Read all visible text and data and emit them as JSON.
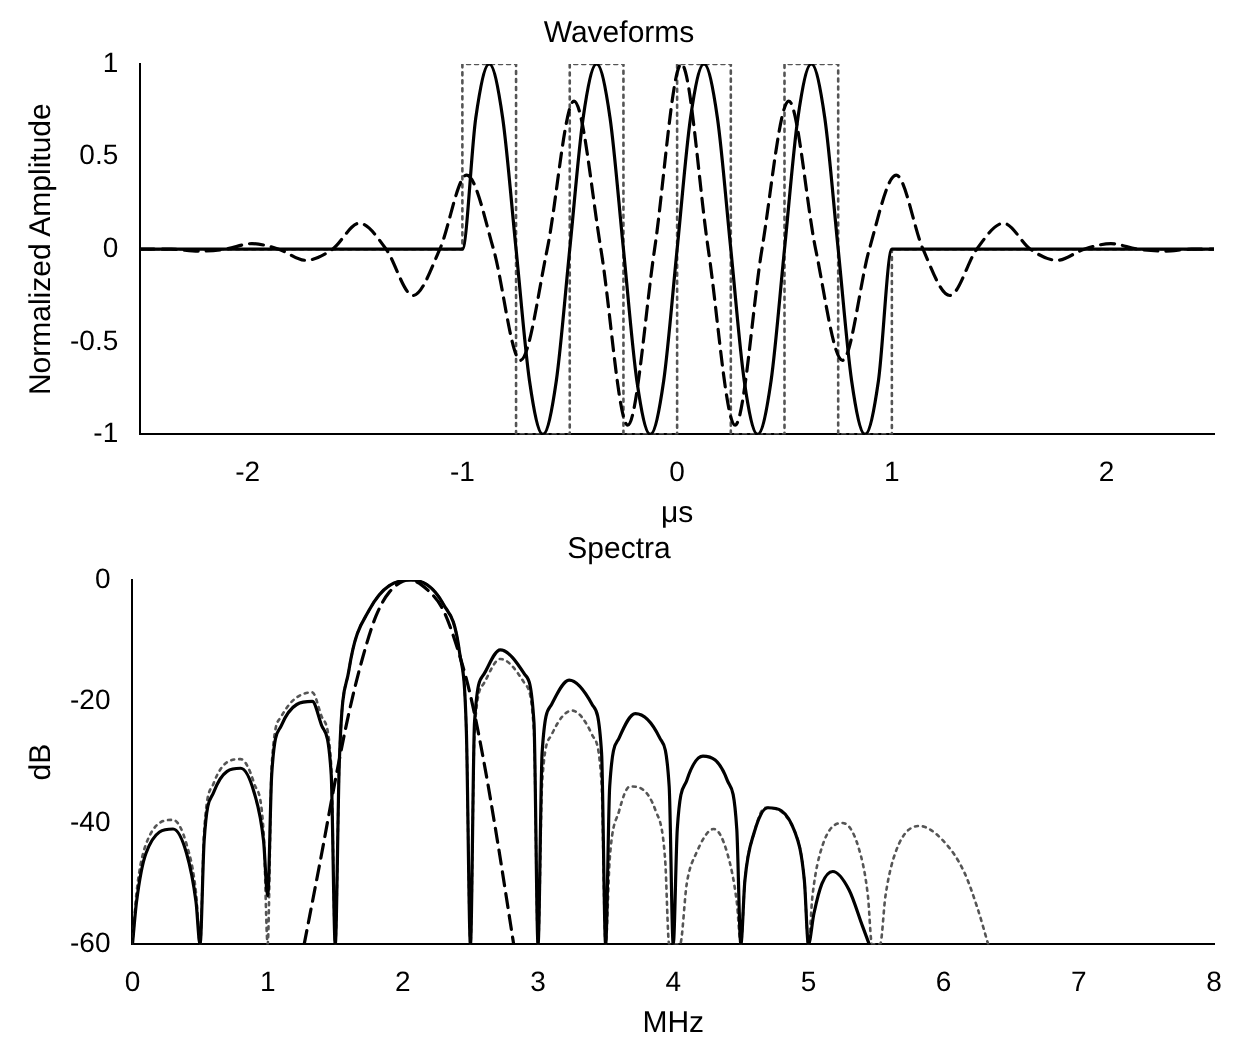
{
  "chart_data": [
    {
      "type": "line",
      "title": "Waveforms",
      "xlabel": "μs",
      "ylabel": "Normalized Amplitude",
      "xlim": [
        -2.5,
        2.5
      ],
      "xticks": [
        -2,
        -1,
        0,
        1,
        2
      ],
      "ylim": [
        -1,
        1
      ],
      "yticks": [
        -1,
        -0.5,
        0,
        0.5,
        1
      ],
      "grid": false,
      "legend": false,
      "marker": "none",
      "series": [
        {
          "type": "line",
          "color": "#000000",
          "line_style": "solid",
          "x": [
            -2.5,
            -1,
            -0.9375,
            -0.875,
            -0.8125,
            -0.75,
            -0.6875,
            -0.625,
            -0.5625,
            -0.5,
            -0.4375,
            -0.375,
            -0.3125,
            -0.25,
            -0.1875,
            -0.125,
            -0.0625,
            0,
            0.0625,
            0.125,
            0.1875,
            0.25,
            0.3125,
            0.375,
            0.4375,
            0.5,
            0.5625,
            0.625,
            0.6875,
            0.75,
            0.8125,
            0.875,
            0.9375,
            1,
            2.5
          ],
          "values": [
            0,
            0,
            0.71,
            1,
            0.71,
            0,
            -0.71,
            -1,
            -0.71,
            0,
            0.71,
            1,
            0.71,
            0,
            -0.71,
            -1,
            -0.71,
            0,
            0.71,
            1,
            0.71,
            0,
            -0.71,
            -1,
            -0.71,
            0,
            0.71,
            1,
            0.71,
            0,
            -0.71,
            -1,
            -0.71,
            0,
            0
          ]
        },
        {
          "type": "line",
          "color": "#000000",
          "line_style": "dashed",
          "x": [
            -2.5,
            -2.48,
            -2.355,
            -2.23,
            -2.105,
            -1.98,
            -1.855,
            -1.73,
            -1.605,
            -1.48,
            -1.355,
            -1.23,
            -1.105,
            -0.98,
            -0.855,
            -0.73,
            -0.605,
            -0.48,
            -0.355,
            -0.23,
            -0.105,
            0.02,
            0.145,
            0.27,
            0.395,
            0.52,
            0.645,
            0.77,
            0.895,
            1.02,
            1.145,
            1.27,
            1.395,
            1.52,
            1.645,
            1.77,
            1.895,
            2.02,
            2.145,
            2.27,
            2.395,
            2.5
          ],
          "values": [
            0,
            0,
            0,
            -0.01,
            0,
            0.03,
            0,
            -0.06,
            0,
            0.14,
            0,
            -0.25,
            0,
            0.4,
            0,
            -0.6,
            0,
            0.8,
            0,
            -0.95,
            0,
            1,
            0,
            -0.95,
            0,
            0.8,
            0,
            -0.6,
            0,
            0.4,
            0,
            -0.25,
            0,
            0.14,
            0,
            -0.06,
            0,
            0.03,
            0,
            -0.01,
            0,
            0
          ]
        },
        {
          "type": "step",
          "color": "#555555",
          "line_style": "dotted",
          "x": [
            -2.5,
            -1,
            -0.75,
            -0.5,
            -0.25,
            0,
            0.25,
            0.5,
            0.75,
            1,
            2.5
          ],
          "values": [
            0,
            1,
            -1,
            1,
            -1,
            1,
            -1,
            1,
            -1,
            0,
            0
          ]
        }
      ]
    },
    {
      "type": "line",
      "title": "Spectra",
      "xlabel": "MHz",
      "ylabel": "dB",
      "xlim": [
        0,
        8
      ],
      "xticks": [
        0,
        1,
        2,
        3,
        4,
        5,
        6,
        7,
        8
      ],
      "ylim": [
        -60,
        0
      ],
      "yticks": [
        -60,
        -40,
        -20,
        0
      ],
      "grid": false,
      "legend": false,
      "marker": "none",
      "series": [
        {
          "type": "line",
          "color": "#000000",
          "line_style": "solid",
          "x": [
            0,
            0.03,
            0.1,
            0.3,
            0.4,
            0.47,
            0.5,
            0.53,
            0.6,
            0.8,
            0.9,
            0.97,
            1,
            1.03,
            1.1,
            1.33,
            1.4,
            1.47,
            1.5,
            1.53,
            1.6,
            1.75,
            2.05,
            2.3,
            2.42,
            2.47,
            2.5,
            2.53,
            2.6,
            2.72,
            2.9,
            2.97,
            3,
            3.03,
            3.1,
            3.23,
            3.4,
            3.47,
            3.5,
            3.53,
            3.6,
            3.72,
            3.9,
            3.97,
            4,
            4.03,
            4.1,
            4.22,
            4.4,
            4.47,
            4.5,
            4.53,
            4.6,
            4.7,
            4.9,
            4.97,
            5,
            5.04,
            5.1,
            5.18,
            5.3,
            5.4,
            5.45
          ],
          "values": [
            -60,
            -53,
            -45,
            -41,
            -45,
            -53,
            -60,
            -43,
            -35,
            -31,
            -35,
            -43,
            -52,
            -32,
            -24,
            -20,
            -24,
            -32,
            -60,
            -30,
            -15,
            -5,
            0,
            -4,
            -12,
            -25,
            -60,
            -23.5,
            -15.5,
            -11.5,
            -15.5,
            -23.5,
            -60,
            -28.5,
            -20.5,
            -16.5,
            -20.5,
            -28.5,
            -60,
            -34,
            -26,
            -22,
            -26,
            -34,
            -60,
            -41,
            -33,
            -29,
            -33,
            -41,
            -60,
            -49.5,
            -41.5,
            -37.5,
            -41.5,
            -49.5,
            -60,
            -55,
            -50,
            -48,
            -51,
            -57,
            -60
          ]
        },
        {
          "type": "line",
          "color": "#000000",
          "line_style": "dashed",
          "x": [
            1.27,
            1.4,
            1.5,
            1.6,
            1.7,
            1.8,
            1.9,
            2.05,
            2.2,
            2.3,
            2.4,
            2.5,
            2.6,
            2.7,
            2.82
          ],
          "values": [
            -60,
            -45,
            -33,
            -22,
            -13,
            -6,
            -2,
            0,
            -2,
            -5,
            -11,
            -19,
            -30,
            -43,
            -60
          ]
        },
        {
          "type": "line",
          "color": "#555555",
          "line_style": "dotted",
          "x": [
            0,
            0.03,
            0.1,
            0.3,
            0.4,
            0.47,
            0.5,
            0.53,
            0.6,
            0.8,
            0.9,
            0.97,
            1,
            1.03,
            1.1,
            1.33,
            1.4,
            1.47,
            1.5,
            1.53,
            1.6,
            1.75,
            2.05,
            2.3,
            2.42,
            2.47,
            2.5,
            2.53,
            2.6,
            2.72,
            2.9,
            2.97,
            3,
            3.03,
            3.1,
            3.25,
            3.4,
            3.47,
            3.5,
            3.53,
            3.6,
            3.68,
            3.87,
            3.94,
            3.97,
            4.05,
            4.1,
            4.17,
            4.3,
            4.4,
            4.47,
            4.5,
            4.53,
            4.6,
            4.68,
            4.9,
            4.97,
            5,
            5.03,
            5.1,
            5.25,
            5.37,
            5.44,
            5.47,
            5.53,
            5.57,
            5.65,
            5.82,
            6.0,
            6.15,
            6.25,
            6.33
          ],
          "values": [
            -60,
            -51.5,
            -43.5,
            -39.5,
            -43.5,
            -51.5,
            -60,
            -41.5,
            -33.5,
            -29.5,
            -33.5,
            -41.5,
            -60,
            -30.5,
            -22.5,
            -18.5,
            -22.5,
            -30.5,
            -60,
            -30,
            -15,
            -5,
            0,
            -4,
            -12,
            -25,
            -60,
            -25,
            -17,
            -13,
            -17,
            -25,
            -60,
            -33.5,
            -25.5,
            -21.5,
            -25.5,
            -33.5,
            -60,
            -46,
            -38,
            -34,
            -38,
            -46,
            -60,
            -60,
            -50,
            -45,
            -41,
            -45,
            -53,
            -60,
            -49.5,
            -41.5,
            -37.5,
            -41.5,
            -49.5,
            -60,
            -52,
            -44,
            -40,
            -44,
            -52,
            -60,
            -60,
            -52,
            -44.5,
            -40.5,
            -43,
            -48,
            -54,
            -60
          ]
        }
      ]
    }
  ]
}
